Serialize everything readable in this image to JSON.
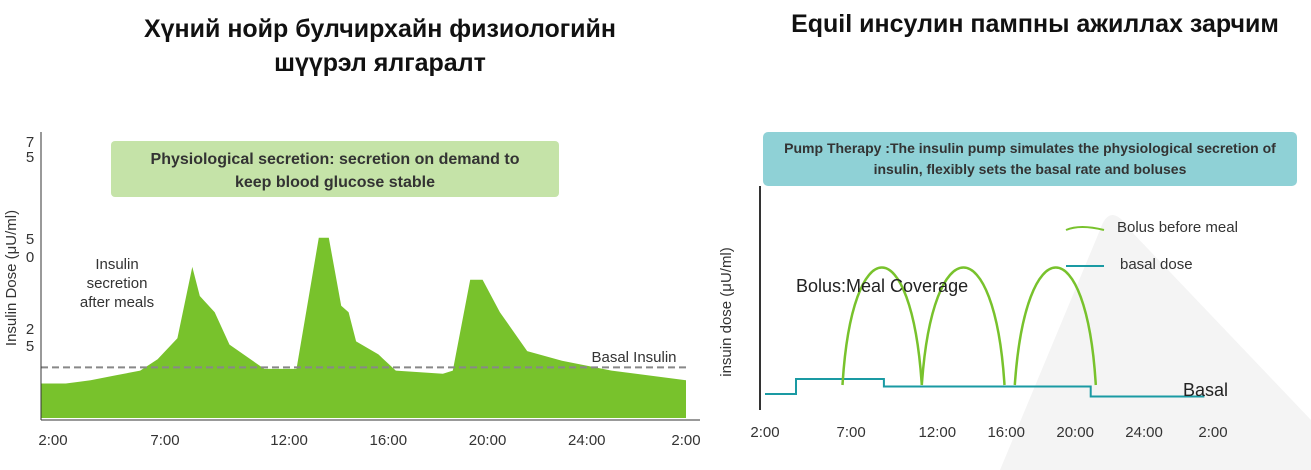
{
  "left_title": {
    "line1": "Хүний нойр булчирхайн физиологийн",
    "line2": "шүүрэл ялгаралт"
  },
  "right_title": "Equil инсулин пампны ажиллах зарчим",
  "colors": {
    "green": "#78c22c",
    "green_box": "#c5e3a8",
    "teal": "#1a9aa3",
    "teal_box": "#8fd1d6",
    "dash": "#888888"
  },
  "chart_data": [
    {
      "type": "area",
      "title": "",
      "box_text": [
        "Physiological secretion: secretion on demand to",
        "keep blood glucose stable"
      ],
      "ylabel": "Insulin Dose  (μU/ml)",
      "ytick_labels": [
        [
          "7",
          "5"
        ],
        [
          "5",
          "0"
        ],
        [
          "2",
          "5"
        ]
      ],
      "x_tick_labels": [
        "2:00",
        "7:00",
        "12:00",
        "16:00",
        "20:00",
        "24:00",
        "2:00"
      ],
      "x_tick_hours": [
        2,
        7,
        12,
        16,
        20,
        24,
        28
      ],
      "xlim": [
        2,
        28
      ],
      "ylim": [
        0,
        75
      ],
      "annotations": {
        "secretion": [
          "Insulin",
          "secretion",
          "after meals"
        ],
        "basal": "Basal Insulin"
      },
      "basal_level": 7,
      "series": [
        {
          "x": [
            2,
            3,
            4,
            5,
            6,
            6.7,
            7.5,
            8.1,
            8.4,
            9,
            9.6,
            11,
            12.3,
            13.2,
            13.6,
            14.1,
            14.4,
            14.7,
            15.6,
            16.3,
            18.2,
            18.6,
            19.3,
            19.8,
            20.5,
            21.6,
            23,
            25,
            28
          ],
          "y": [
            2,
            2,
            3,
            4.5,
            6,
            9.5,
            16,
            38,
            29,
            24,
            14,
            6.5,
            6.5,
            47,
            47,
            26,
            24,
            15,
            11,
            6,
            5,
            6,
            34,
            34,
            24,
            12,
            9,
            6,
            3
          ]
        }
      ]
    },
    {
      "type": "line",
      "title": "",
      "box_text": [
        "Pump Therapy :The insulin pump simulates the physiological secretion of",
        "insulin, flexibly sets the basal rate and boluses"
      ],
      "ylabel": "insuin dose  (μU/ml)",
      "x_tick_labels": [
        "2:00",
        "7:00",
        "12:00",
        "16:00",
        "20:00",
        "24:00",
        "2:00"
      ],
      "x_tick_hours": [
        2,
        7,
        12,
        16,
        20,
        24,
        28
      ],
      "xlim": [
        2,
        28
      ],
      "legend": [
        {
          "name": "Bolus before meal",
          "color": "#78c22c"
        },
        {
          "name": "basal dose",
          "color": "#1a9aa3"
        }
      ],
      "annotations": {
        "bolus": "Bolus:Meal Coverage",
        "basal": "Basal"
      },
      "series": [
        {
          "name": "basal dose",
          "x": [
            2,
            3.8,
            3.8,
            8.9,
            8.9,
            20.9,
            20.9,
            27.5
          ],
          "y": [
            2,
            2,
            8,
            8,
            5,
            5,
            1,
            1
          ]
        },
        {
          "name": "Bolus before meal",
          "arcs": [
            {
              "start": 6.5,
              "peak": 8.7,
              "end": 11.1
            },
            {
              "start": 11.1,
              "peak": 13.6,
              "end": 15.9
            },
            {
              "start": 16.5,
              "peak": 19.0,
              "end": 21.2
            }
          ],
          "peak_value": 46
        }
      ]
    }
  ]
}
